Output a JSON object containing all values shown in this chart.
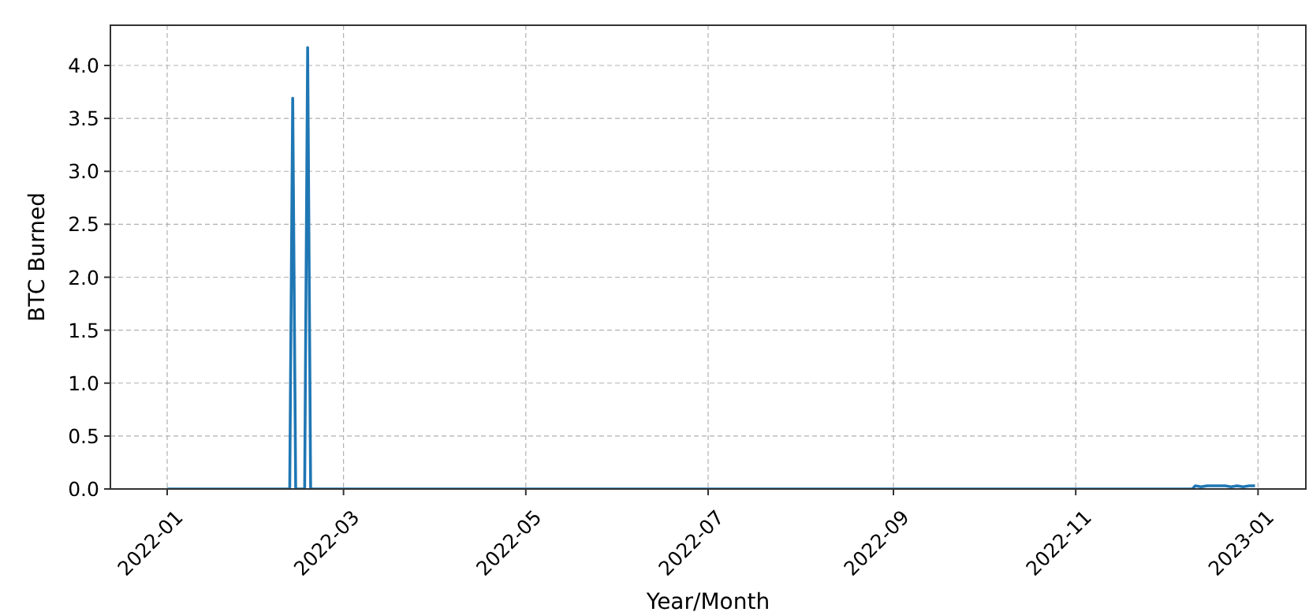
{
  "chart_data": {
    "type": "line",
    "xlabel": "Year/Month",
    "ylabel": "BTC Burned",
    "x": [
      "2022-01-01",
      "2022-02-11",
      "2022-02-12",
      "2022-02-13",
      "2022-02-16",
      "2022-02-17",
      "2022-02-18",
      "2022-12-10",
      "2022-12-11",
      "2022-12-13",
      "2022-12-15",
      "2022-12-18",
      "2022-12-21",
      "2022-12-23",
      "2022-12-25",
      "2022-12-27",
      "2022-12-29",
      "2022-12-31"
    ],
    "series": [
      {
        "color": "#1f77b4",
        "values": [
          0,
          0,
          3.69,
          0,
          0,
          4.17,
          0,
          0,
          0.03,
          0.02,
          0.03,
          0.03,
          0.03,
          0.02,
          0.03,
          0.02,
          0.03,
          0.03
        ]
      }
    ],
    "xlim": [
      "2021-12-13",
      "2023-01-17"
    ],
    "xticks": [
      {
        "value": "2022-01-01",
        "label": "2022-01"
      },
      {
        "value": "2022-03-01",
        "label": "2022-03"
      },
      {
        "value": "2022-05-01",
        "label": "2022-05"
      },
      {
        "value": "2022-07-01",
        "label": "2022-07"
      },
      {
        "value": "2022-09-01",
        "label": "2022-09"
      },
      {
        "value": "2022-11-01",
        "label": "2022-11"
      },
      {
        "value": "2023-01-01",
        "label": "2023-01"
      }
    ],
    "ylim": [
      0,
      4.38
    ],
    "yticks": [
      {
        "value": 0,
        "label": "0.0"
      },
      {
        "value": 0.5,
        "label": "0.5"
      },
      {
        "value": 1,
        "label": "1.0"
      },
      {
        "value": 1.5,
        "label": "1.5"
      },
      {
        "value": 2,
        "label": "2.0"
      },
      {
        "value": 2.5,
        "label": "2.5"
      },
      {
        "value": 3,
        "label": "3.0"
      },
      {
        "value": 3.5,
        "label": "3.5"
      },
      {
        "value": 4,
        "label": "4.0"
      }
    ],
    "grid": true,
    "line_style": "solid"
  }
}
